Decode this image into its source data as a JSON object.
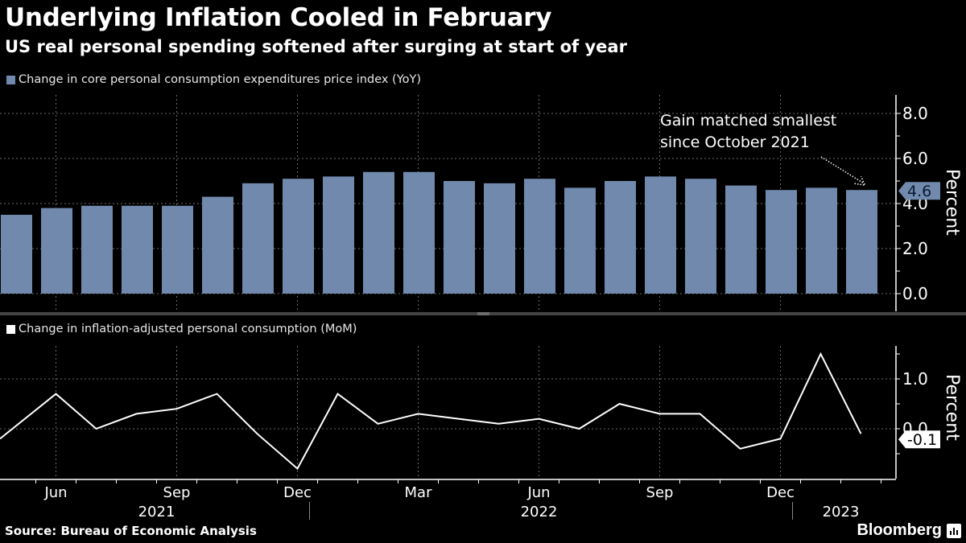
{
  "header": {
    "title": "Underlying Inflation Cooled in February",
    "subtitle": "US real personal spending softened after surging at start of year"
  },
  "footer": {
    "source": "Source: Bureau of Economic Analysis",
    "brand": "Bloomberg",
    "brand_icon": "bloomberg-chart-icon"
  },
  "colors": {
    "bar": "#7089ad",
    "line": "#ffffff",
    "background": "#000000",
    "grid": "#6a6a6a"
  },
  "chart_data": [
    {
      "type": "bar",
      "title": "Change in core personal consumption expenditures price index (YoY)",
      "legend": "Change in core personal consumption expenditures price index (YoY)",
      "legend_position": "top-left",
      "ylabel": "Percent",
      "ylim": [
        -0.2,
        8.8
      ],
      "yticks": [
        "0.0",
        "2.0",
        "4.0",
        "6.0",
        "8.0"
      ],
      "grid": true,
      "categories": [
        "May 2021",
        "Jun 2021",
        "Jul 2021",
        "Aug 2021",
        "Sep 2021",
        "Oct 2021",
        "Nov 2021",
        "Dec 2021",
        "Jan 2022",
        "Feb 2022",
        "Mar 2022",
        "Apr 2022",
        "May 2022",
        "Jun 2022",
        "Jul 2022",
        "Aug 2022",
        "Sep 2022",
        "Oct 2022",
        "Nov 2022",
        "Dec 2022",
        "Jan 2023",
        "Feb 2023"
      ],
      "values": [
        3.5,
        3.8,
        3.9,
        3.9,
        3.9,
        4.3,
        4.9,
        5.1,
        5.2,
        5.4,
        5.4,
        5.0,
        4.9,
        5.1,
        4.7,
        5.0,
        5.2,
        5.1,
        4.8,
        4.6,
        4.7,
        4.6
      ],
      "last_value_label": "4.6",
      "annotation": {
        "line1": "Gain matched smallest",
        "line2": "since October 2021",
        "target": "Feb 2023"
      }
    },
    {
      "type": "line",
      "title": "Change in inflation-adjusted personal consumption (MoM)",
      "legend": "Change in inflation-adjusted personal consumption (MoM)",
      "legend_position": "top-left",
      "ylabel": "Percent",
      "ylim": [
        -0.95,
        1.7
      ],
      "yticks": [
        "0.0",
        "1.0"
      ],
      "grid": true,
      "categories": [
        "May 2021",
        "Jun 2021",
        "Jul 2021",
        "Aug 2021",
        "Sep 2021",
        "Oct 2021",
        "Nov 2021",
        "Dec 2021",
        "Jan 2022",
        "Feb 2022",
        "Mar 2022",
        "Apr 2022",
        "May 2022",
        "Jun 2022",
        "Jul 2022",
        "Aug 2022",
        "Sep 2022",
        "Oct 2022",
        "Nov 2022",
        "Dec 2022",
        "Jan 2023",
        "Feb 2023"
      ],
      "values": [
        -0.2,
        0.7,
        0.0,
        0.3,
        0.4,
        0.7,
        -0.1,
        -0.8,
        0.7,
        0.1,
        0.3,
        0.2,
        0.1,
        0.2,
        0.0,
        0.5,
        0.3,
        0.3,
        -0.4,
        -0.2,
        1.5,
        -0.1
      ],
      "last_value_label": "-0.1"
    }
  ],
  "xaxis": {
    "month_labels": [
      {
        "label": "Jun",
        "index": 1
      },
      {
        "label": "Sep",
        "index": 4
      },
      {
        "label": "Dec",
        "index": 7
      },
      {
        "label": "Mar",
        "index": 10
      },
      {
        "label": "Jun",
        "index": 13
      },
      {
        "label": "Sep",
        "index": 16
      },
      {
        "label": "Dec",
        "index": 19
      }
    ],
    "year_labels": [
      {
        "label": "2021",
        "index": 3.5
      },
      {
        "label": "2022",
        "index": 13
      },
      {
        "label": "2023",
        "index": 20.5
      }
    ],
    "year_dividers": [
      7.5,
      19.5
    ]
  }
}
